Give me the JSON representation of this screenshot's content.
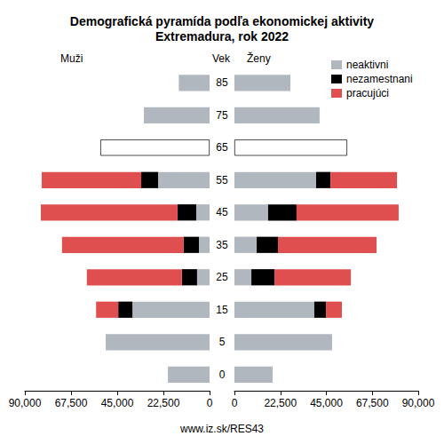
{
  "chart_data": [
    {
      "type": "bar",
      "orientation": "horizontal",
      "stacked": true,
      "grid": false,
      "title": "Demografická pyramída podľa ekonomickej aktivity\nExtremadura, rok 2022",
      "subtitle": "Muži",
      "y_label": "Vek",
      "annotations": [
        "www.iz.sk/RES43"
      ],
      "categories": [
        "0",
        "5",
        "15",
        "25",
        "35",
        "45",
        "55",
        "65",
        "75",
        "85"
      ],
      "xlim": [
        0,
        90000
      ],
      "xticks": [
        0,
        22500,
        45000,
        67500,
        90000
      ],
      "series": [
        {
          "name": "neaktivni",
          "color": "#b1b7be",
          "values": [
            20300,
            50600,
            37600,
            6100,
            5200,
            6500,
            25100,
            null,
            32000,
            15000
          ]
        },
        {
          "name": "nezamestnani",
          "color": "#000000",
          "values": [
            null,
            null,
            6900,
            7400,
            7400,
            9100,
            8200,
            null,
            null,
            null
          ]
        },
        {
          "name": "pracujúci",
          "color": "#e04f4f",
          "values": [
            null,
            null,
            10800,
            46300,
            59300,
            66600,
            48500,
            null,
            null,
            null
          ]
        },
        {
          "color": "#ffffff",
          "values": [
            null,
            null,
            null,
            null,
            null,
            null,
            null,
            53200,
            null,
            null
          ]
        }
      ]
    },
    {
      "type": "bar",
      "orientation": "horizontal",
      "stacked": true,
      "grid": false,
      "subtitle": "Ženy",
      "legend": "top right",
      "categories": [
        "0",
        "5",
        "15",
        "25",
        "35",
        "45",
        "55",
        "65",
        "75",
        "85"
      ],
      "xlim": [
        0,
        90000
      ],
      "xticks": [
        0,
        22500,
        45000,
        67500,
        90000
      ],
      "series": [
        {
          "name": "neaktivni",
          "color": "#b1b7be",
          "values": [
            18700,
            47800,
            39100,
            8300,
            10900,
            16500,
            40000,
            null,
            41700,
            27400
          ]
        },
        {
          "name": "nezamestnani",
          "color": "#000000",
          "values": [
            null,
            null,
            5700,
            11300,
            10400,
            13900,
            7000,
            null,
            null,
            null
          ]
        },
        {
          "name": "pracujúci",
          "color": "#e04f4f",
          "values": [
            null,
            null,
            7800,
            37400,
            48300,
            50000,
            32600,
            null,
            null,
            null
          ]
        },
        {
          "color": "#ffffff",
          "values": [
            null,
            null,
            null,
            null,
            null,
            null,
            null,
            55200,
            null,
            null
          ]
        }
      ]
    }
  ]
}
